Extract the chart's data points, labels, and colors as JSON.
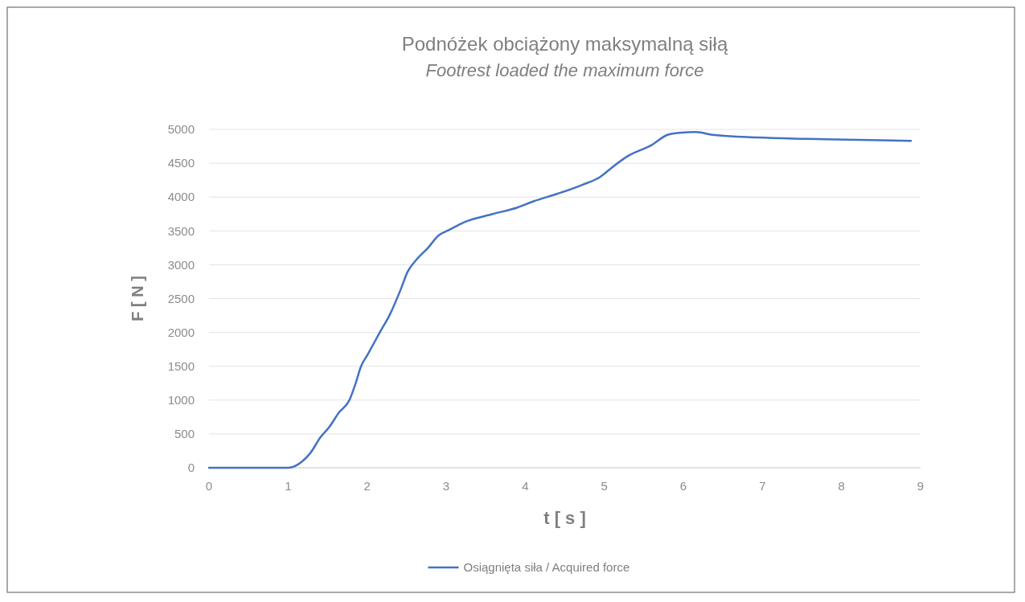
{
  "chart_data": {
    "type": "line",
    "title": "Podnóżek obciążony maksymalną siłą",
    "subtitle": "Footrest loaded the maximum force",
    "xlabel": "t [ s ]",
    "ylabel": "F [ N ]",
    "xlim": [
      0,
      9
    ],
    "xticks": [
      0,
      1,
      2,
      3,
      4,
      5,
      6,
      7,
      8,
      9
    ],
    "ylim": [
      0,
      5000
    ],
    "yticks": [
      0,
      500,
      1000,
      1500,
      2000,
      2500,
      3000,
      3500,
      4000,
      4500,
      5000
    ],
    "grid": "y",
    "legend": "bottom",
    "marker": "none",
    "line_style": "solid",
    "series": [
      {
        "name": "Osiągnięta siła / Acquired force",
        "color": "#4472c4",
        "x": [
          0,
          1.0,
          1.18,
          1.28,
          1.41,
          1.52,
          1.64,
          1.78,
          1.85,
          1.92,
          2.01,
          2.16,
          2.29,
          2.43,
          2.51,
          2.62,
          2.77,
          2.9,
          3.03,
          3.23,
          3.59,
          3.9,
          4.11,
          4.41,
          4.72,
          4.95,
          5.1,
          5.29,
          5.6,
          5.8,
          5.95,
          6.16,
          6.37,
          6.93,
          7.55,
          8.21,
          8.88
        ],
        "values": [
          0,
          0,
          95,
          215,
          450,
          600,
          810,
          1010,
          1230,
          1490,
          1680,
          2000,
          2270,
          2650,
          2890,
          3070,
          3250,
          3430,
          3510,
          3630,
          3750,
          3845,
          3940,
          4050,
          4180,
          4300,
          4440,
          4600,
          4770,
          4920,
          4950,
          4960,
          4920,
          4880,
          4860,
          4845,
          4830
        ]
      }
    ]
  }
}
